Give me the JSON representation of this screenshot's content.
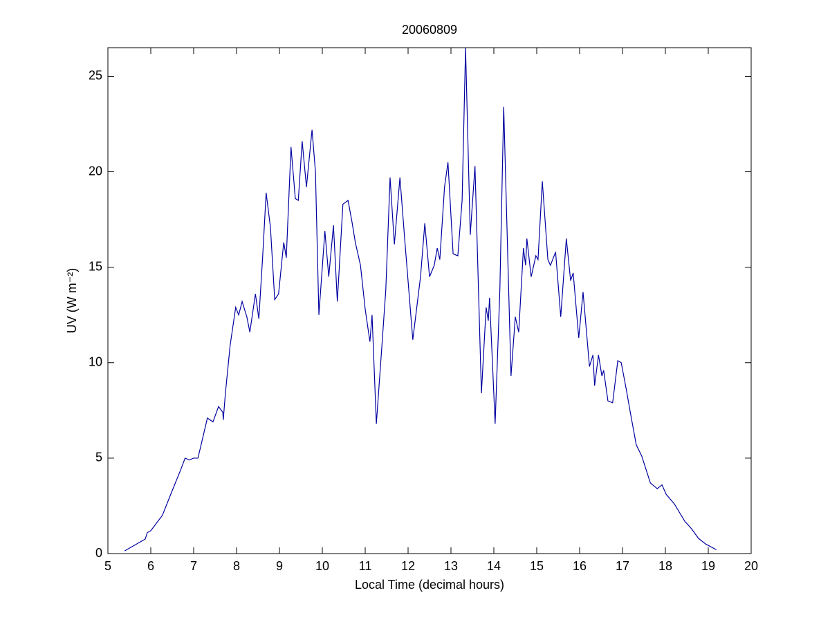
{
  "chart_data": {
    "type": "line",
    "title": "20060809",
    "x_label": "Local Time (decimal hours)",
    "y_label": "UV (W m⁻²)",
    "xlim": [
      5,
      20
    ],
    "ylim": [
      0,
      26.5
    ],
    "xticks": [
      5,
      6,
      7,
      8,
      9,
      10,
      11,
      12,
      13,
      14,
      15,
      16,
      17,
      18,
      19,
      20
    ],
    "yticks": [
      0,
      5,
      10,
      15,
      20,
      25
    ],
    "series": [
      {
        "color": "#0000a0",
        "x": [
          5.39,
          5.87,
          5.92,
          6.0,
          6.27,
          6.5,
          6.7,
          6.8,
          6.9,
          7.0,
          7.1,
          7.32,
          7.45,
          7.58,
          7.68,
          7.69,
          7.74,
          7.85,
          7.98,
          8.05,
          8.13,
          8.24,
          8.31,
          8.44,
          8.52,
          8.61,
          8.69,
          8.79,
          8.89,
          8.98,
          9.1,
          9.16,
          9.27,
          9.37,
          9.44,
          9.53,
          9.63,
          9.76,
          9.84,
          9.92,
          10.06,
          10.15,
          10.26,
          10.35,
          10.48,
          10.6,
          10.69,
          10.77,
          10.89,
          11.0,
          11.11,
          11.16,
          11.26,
          11.39,
          11.48,
          11.58,
          11.68,
          11.81,
          11.92,
          12.11,
          12.29,
          12.39,
          12.5,
          12.61,
          12.68,
          12.74,
          12.85,
          12.93,
          13.05,
          13.16,
          13.26,
          13.34,
          13.45,
          13.56,
          13.71,
          13.82,
          13.87,
          13.9,
          14.03,
          14.14,
          14.23,
          14.4,
          14.5,
          14.58,
          14.69,
          14.74,
          14.77,
          14.87,
          14.98,
          15.03,
          15.13,
          15.26,
          15.32,
          15.44,
          15.56,
          15.69,
          15.79,
          15.85,
          15.98,
          16.08,
          16.23,
          16.31,
          16.35,
          16.44,
          16.52,
          16.56,
          16.66,
          16.77,
          16.89,
          16.97,
          17.08,
          17.19,
          17.32,
          17.45,
          17.65,
          17.81,
          17.92,
          18.02,
          18.21,
          18.45,
          18.61,
          18.77,
          18.94,
          19.19
        ],
        "values": [
          0.14,
          0.76,
          1.1,
          1.2,
          2.0,
          3.3,
          4.4,
          5.0,
          4.9,
          5.0,
          5.0,
          7.1,
          6.9,
          7.7,
          7.4,
          7.0,
          8.4,
          10.9,
          12.9,
          12.5,
          13.2,
          12.4,
          11.6,
          13.6,
          12.3,
          15.6,
          18.9,
          17.1,
          13.3,
          13.6,
          16.3,
          15.5,
          21.3,
          18.6,
          18.5,
          21.6,
          19.2,
          22.2,
          20.0,
          12.5,
          16.9,
          14.5,
          17.2,
          13.2,
          18.3,
          18.5,
          17.4,
          16.3,
          15.1,
          12.8,
          11.1,
          12.5,
          6.8,
          10.9,
          13.8,
          19.7,
          16.2,
          19.7,
          16.5,
          11.2,
          14.5,
          17.3,
          14.5,
          15.1,
          16.0,
          15.4,
          19.2,
          20.5,
          15.7,
          15.6,
          18.5,
          26.5,
          16.7,
          20.3,
          8.4,
          12.9,
          12.2,
          13.4,
          6.8,
          13.8,
          23.4,
          9.3,
          12.4,
          11.6,
          16.0,
          15.1,
          16.5,
          14.5,
          15.6,
          15.4,
          19.5,
          15.4,
          15.1,
          15.8,
          12.4,
          16.5,
          14.3,
          14.7,
          11.3,
          13.7,
          9.8,
          10.4,
          8.8,
          10.4,
          9.3,
          9.6,
          8.0,
          7.9,
          10.1,
          10.0,
          8.7,
          7.3,
          5.7,
          5.1,
          3.7,
          3.4,
          3.6,
          3.1,
          2.6,
          1.7,
          1.3,
          0.8,
          0.5,
          0.2
        ]
      }
    ]
  }
}
